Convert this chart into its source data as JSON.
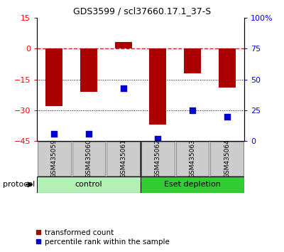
{
  "title": "GDS3599 / scl37660.17.1_37-S",
  "categories": [
    "GSM435059",
    "GSM435060",
    "GSM435061",
    "GSM435062",
    "GSM435063",
    "GSM435064"
  ],
  "red_values": [
    -28,
    -21,
    3,
    -37,
    -12,
    -19
  ],
  "blue_right_vals": [
    6,
    6,
    43,
    2,
    25,
    20
  ],
  "ylim_left": [
    -45,
    15
  ],
  "ylim_right": [
    0,
    100
  ],
  "left_ticks": [
    15,
    0,
    -15,
    -30,
    -45
  ],
  "right_ticks": [
    100,
    75,
    50,
    25,
    0
  ],
  "right_tick_labels": [
    "100%",
    "75",
    "50",
    "25",
    "0"
  ],
  "control_label": "control",
  "eset_label": "Eset depletion",
  "protocol_label": "protocol",
  "legend_red": "transformed count",
  "legend_blue": "percentile rank within the sample",
  "bar_color": "#aa0000",
  "dot_color": "#0000cc",
  "control_bg": "#b3f0b3",
  "eset_bg": "#33cc33",
  "sample_bg": "#cccccc",
  "bar_width": 0.5,
  "dot_size": 40,
  "n_control": 3,
  "n_eset": 3
}
